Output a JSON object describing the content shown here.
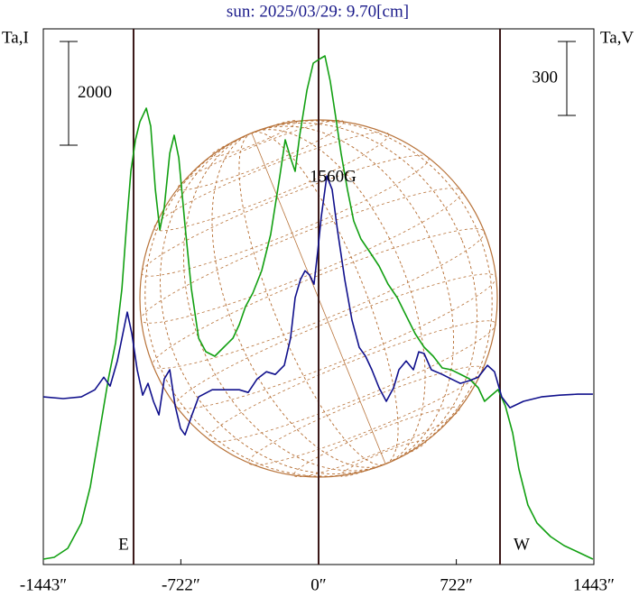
{
  "chart_data": {
    "type": "line",
    "title": "sun: 2025/03/29: 9.70[cm]",
    "ylabel": "Ta,I",
    "y2label": "Ta,V",
    "xlim": [
      -1443,
      1443
    ],
    "ylim": [
      0,
      10330
    ],
    "y2lim": [
      -680,
      1493
    ],
    "xticks": [
      {
        "value": -1443,
        "label": "-1443″"
      },
      {
        "value": -722,
        "label": "-722″"
      },
      {
        "value": 0,
        "label": "0″"
      },
      {
        "value": 722,
        "label": "722″"
      },
      {
        "value": 1443,
        "label": "1443″"
      }
    ],
    "vlines": [
      {
        "x": -970,
        "label": "E"
      },
      {
        "x": 0
      },
      {
        "x": 951,
        "label": "W"
      }
    ],
    "scale_bars": [
      {
        "value": 2000
      },
      {
        "value": 300,
        "axis": "y2"
      }
    ],
    "annotations": [
      {
        "text": "1560G"
      }
    ],
    "series": [
      {
        "color": "#12a012",
        "x": [
          -1443,
          -1386,
          -1315,
          -1244,
          -1197,
          -1149,
          -1102,
          -1064,
          -1031,
          -1007,
          -984,
          -960,
          -937,
          -903,
          -880,
          -856,
          -832,
          -809,
          -780,
          -757,
          -733,
          -700,
          -667,
          -629,
          -591,
          -544,
          -497,
          -449,
          -416,
          -383,
          -345,
          -298,
          -251,
          -203,
          -175,
          -147,
          -123,
          -99,
          -61,
          -28,
          9,
          33,
          61,
          90,
          118,
          151,
          184,
          222,
          270,
          317,
          364,
          412,
          459,
          506,
          553,
          601,
          648,
          695,
          743,
          790,
          837,
          870,
          908,
          941,
          979,
          1017,
          1050,
          1097,
          1145,
          1216,
          1287,
          1358,
          1438
        ],
        "values": [
          104,
          139,
          313,
          800,
          1496,
          2539,
          3582,
          4278,
          5321,
          6539,
          7582,
          8191,
          8538,
          8799,
          8452,
          7234,
          6452,
          6886,
          7930,
          8278,
          7843,
          6539,
          5321,
          4365,
          4104,
          4017,
          4191,
          4365,
          4626,
          4974,
          5234,
          5669,
          6365,
          7495,
          8191,
          7843,
          7582,
          8278,
          9147,
          9669,
          9756,
          9808,
          9321,
          8625,
          7930,
          7234,
          6626,
          6278,
          6017,
          5756,
          5408,
          5147,
          4800,
          4452,
          4191,
          4017,
          3791,
          3756,
          3669,
          3582,
          3408,
          3148,
          3269,
          3374,
          3061,
          2539,
          1843,
          1148,
          800,
          539,
          365,
          243,
          104
        ]
      },
      {
        "color": "#10108c",
        "axis": "y2",
        "x": [
          -1443,
          -1339,
          -1244,
          -1173,
          -1126,
          -1093,
          -1055,
          -1026,
          -1003,
          -979,
          -951,
          -922,
          -894,
          -866,
          -837,
          -809,
          -780,
          -752,
          -724,
          -700,
          -667,
          -629,
          -558,
          -497,
          -416,
          -369,
          -322,
          -274,
          -227,
          -180,
          -147,
          -123,
          -95,
          -71,
          -47,
          -24,
          -5,
          14,
          43,
          71,
          99,
          137,
          175,
          213,
          246,
          279,
          317,
          355,
          393,
          421,
          459,
          497,
          525,
          553,
          591,
          648,
          695,
          743,
          790,
          837,
          885,
          922,
          960,
          1003,
          1074,
          1168,
          1263,
          1358,
          1438
        ],
        "values": [
          0,
          -7,
          0,
          29,
          80,
          44,
          146,
          256,
          344,
          256,
          110,
          7,
          55,
          -18,
          -73,
          73,
          110,
          -37,
          -128,
          -154,
          -80,
          0,
          29,
          29,
          29,
          18,
          73,
          102,
          91,
          128,
          238,
          402,
          476,
          512,
          494,
          457,
          585,
          732,
          896,
          841,
          677,
          476,
          311,
          201,
          165,
          110,
          37,
          -18,
          37,
          110,
          146,
          110,
          183,
          176,
          110,
          91,
          73,
          55,
          66,
          80,
          128,
          102,
          0,
          -44,
          -18,
          0,
          7,
          11,
          11
        ]
      }
    ]
  }
}
